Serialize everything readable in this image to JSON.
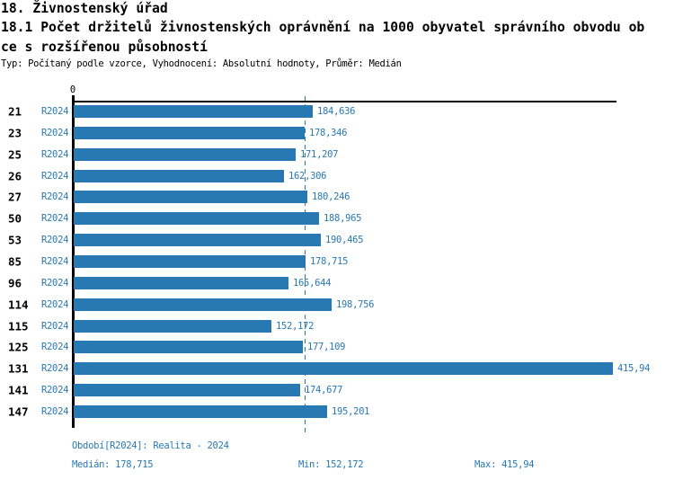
{
  "header": {
    "title": "18. Živnostenský úřad",
    "subtitle_line1": "18.1 Počet držitelů živnostenských oprávnění na 1000 obyvatel správního obvodu ob",
    "subtitle_line2": "ce s rozšířenou působností",
    "meta": "Typ: Počítaný podle vzorce, Vyhodnocení: Absolutní hodnoty, Průměr: Medián"
  },
  "chart_data": {
    "type": "bar",
    "orientation": "horizontal",
    "title": "18.1 Počet držitelů živnostenských oprávnění na 1000 obyvatel správního obvodu obce s rozšířenou působností",
    "axis_zero_label": "0",
    "categories": [
      "21",
      "23",
      "25",
      "26",
      "27",
      "50",
      "53",
      "85",
      "96",
      "114",
      "115",
      "125",
      "131",
      "141",
      "147"
    ],
    "series": [
      {
        "name": "R2024",
        "values": [
          184.636,
          178.346,
          171.207,
          162.306,
          180.246,
          188.965,
          190.465,
          178.715,
          165.644,
          198.756,
          152.172,
          177.109,
          415.94,
          174.677,
          195.201
        ],
        "value_labels": [
          "184,636",
          "178,346",
          "171,207",
          "162,306",
          "180,246",
          "188,965",
          "190,465",
          "178,715",
          "165,644",
          "198,756",
          "152,172",
          "177,109",
          "415,94",
          "174,677",
          "195,201"
        ]
      }
    ],
    "xlim": [
      0,
      415.94
    ],
    "median": 178.715,
    "min": 152.172,
    "max": 415.94,
    "median_line": true,
    "grid": false,
    "legend_position": "none"
  },
  "footer": {
    "period": "Období[R2024]: Realita - 2024",
    "median": "Medián: 178,715",
    "min": "Min: 152,172",
    "max": "Max: 415,94"
  },
  "colors": {
    "bar": "#2878b4",
    "blue_text": "#2878b4",
    "axis": "#000000",
    "text": "#000000",
    "background": "#ffffff"
  }
}
